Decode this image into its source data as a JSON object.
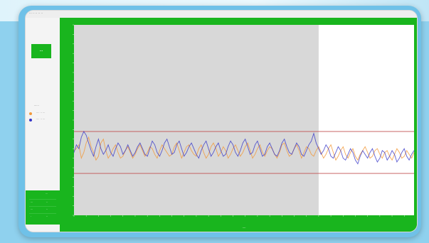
{
  "window": {
    "title": "··· ·· ·· ·· ··"
  },
  "sidebar": {
    "run_label": "···",
    "legend_title": "······",
    "legend": [
      {
        "label": "···· ·· ···",
        "color": "#f29a3c"
      },
      {
        "label": "···· ·· ···",
        "color": "#3535c8"
      }
    ],
    "stats_header": "···",
    "stats": [
      {
        "key": "···",
        "value": "··"
      },
      {
        "key": "···",
        "value": "··"
      },
      {
        "key": "·",
        "value": "··"
      }
    ]
  },
  "colors": {
    "accent_green": "#19b51e",
    "limit_line": "#c05050",
    "shaded_region": "#d8d8d8"
  },
  "chart_data": {
    "type": "line",
    "title": "",
    "xlabel": "····",
    "ylabel": "",
    "ylim": [
      0,
      100
    ],
    "x_count": 140,
    "limits": {
      "upper": 44,
      "lower": 22
    },
    "shaded_until_index": 100,
    "series": [
      {
        "color": "#f29a3c",
        "values": [
          34,
          35,
          37,
          30,
          33,
          38,
          41,
          36,
          33,
          29,
          31,
          38,
          40,
          34,
          30,
          32,
          35,
          37,
          33,
          30,
          31,
          34,
          36,
          33,
          30,
          32,
          35,
          37,
          34,
          31,
          33,
          36,
          35,
          32,
          30,
          34,
          37,
          35,
          33,
          31,
          32,
          36,
          38,
          34,
          30,
          33,
          36,
          37,
          34,
          32,
          31,
          35,
          37,
          33,
          30,
          32,
          36,
          38,
          35,
          31,
          33,
          36,
          34,
          30,
          32,
          35,
          37,
          34,
          31,
          33,
          36,
          38,
          34,
          30,
          32,
          35,
          37,
          33,
          31,
          34,
          36,
          35,
          32,
          30,
          33,
          37,
          38,
          34,
          31,
          32,
          35,
          37,
          34,
          30,
          33,
          36,
          35,
          32,
          31,
          34,
          36,
          33,
          30,
          32,
          35,
          37,
          33,
          29,
          31,
          34,
          36,
          32,
          30,
          33,
          35,
          31,
          29,
          32,
          34,
          36,
          33,
          30,
          31,
          34,
          35,
          32,
          30,
          33,
          34,
          31,
          29,
          32,
          35,
          33,
          30,
          31,
          34,
          32,
          30,
          33
        ]
      },
      {
        "color": "#3535c8",
        "values": [
          33,
          37,
          35,
          41,
          44,
          42,
          38,
          34,
          31,
          36,
          40,
          35,
          32,
          34,
          37,
          33,
          31,
          35,
          38,
          36,
          32,
          34,
          37,
          34,
          31,
          33,
          36,
          38,
          35,
          32,
          31,
          35,
          39,
          37,
          33,
          31,
          34,
          38,
          40,
          36,
          32,
          33,
          37,
          39,
          35,
          31,
          33,
          36,
          38,
          35,
          32,
          30,
          34,
          37,
          39,
          35,
          31,
          33,
          36,
          38,
          34,
          31,
          32,
          36,
          39,
          37,
          33,
          31,
          34,
          38,
          40,
          36,
          32,
          33,
          37,
          39,
          35,
          31,
          32,
          36,
          38,
          35,
          32,
          31,
          34,
          38,
          40,
          36,
          33,
          32,
          35,
          38,
          36,
          32,
          31,
          34,
          37,
          39,
          43,
          38,
          35,
          32,
          34,
          37,
          35,
          31,
          30,
          33,
          36,
          34,
          30,
          29,
          32,
          35,
          33,
          29,
          27,
          31,
          34,
          32,
          30,
          33,
          35,
          31,
          28,
          30,
          34,
          33,
          29,
          31,
          34,
          32,
          28,
          30,
          33,
          35,
          31,
          29,
          32,
          34
        ]
      }
    ]
  }
}
